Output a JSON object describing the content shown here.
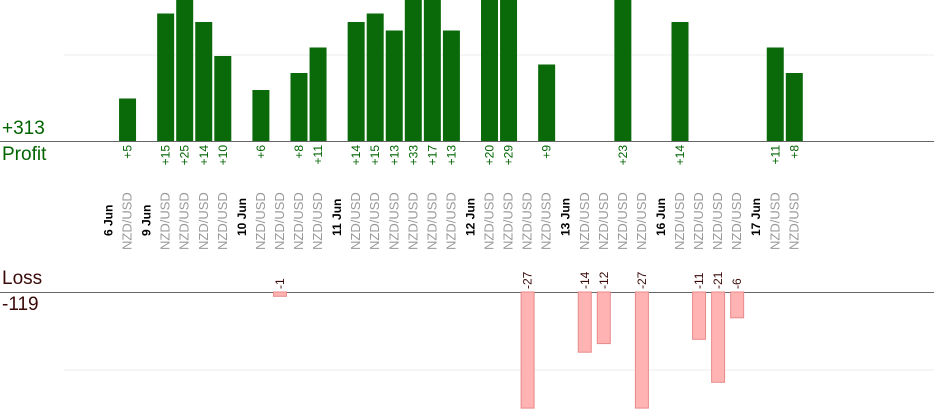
{
  "summary": {
    "profit_total": "+313",
    "profit_label": "Profit",
    "loss_label": "Loss",
    "loss_total": "-119"
  },
  "colors": {
    "profit_bar": "#0a6a0a",
    "loss_bar": "#ffb3b3",
    "profit_text": "#006400",
    "loss_text": "#3a0a0a",
    "pair_text": "#999999",
    "date_text": "#000000"
  },
  "chart_data": {
    "type": "bar",
    "grid": true,
    "columns": [
      {
        "label": "6 Jun",
        "kind": "date"
      },
      {
        "label": "NZD/USD",
        "kind": "pair",
        "profit": 5
      },
      {
        "label": "9 Jun",
        "kind": "date"
      },
      {
        "label": "NZD/USD",
        "kind": "pair",
        "profit": 15
      },
      {
        "label": "NZD/USD",
        "kind": "pair",
        "profit": 25
      },
      {
        "label": "NZD/USD",
        "kind": "pair",
        "profit": 14
      },
      {
        "label": "NZD/USD",
        "kind": "pair",
        "profit": 10
      },
      {
        "label": "10 Jun",
        "kind": "date"
      },
      {
        "label": "NZD/USD",
        "kind": "pair",
        "profit": 6
      },
      {
        "label": "NZD/USD",
        "kind": "pair",
        "loss": -1
      },
      {
        "label": "NZD/USD",
        "kind": "pair",
        "profit": 8
      },
      {
        "label": "NZD/USD",
        "kind": "pair",
        "profit": 11
      },
      {
        "label": "11 Jun",
        "kind": "date"
      },
      {
        "label": "NZD/USD",
        "kind": "pair",
        "profit": 14
      },
      {
        "label": "NZD/USD",
        "kind": "pair",
        "profit": 15
      },
      {
        "label": "NZD/USD",
        "kind": "pair",
        "profit": 13
      },
      {
        "label": "NZD/USD",
        "kind": "pair",
        "profit": 33
      },
      {
        "label": "NZD/USD",
        "kind": "pair",
        "profit": 17
      },
      {
        "label": "NZD/USD",
        "kind": "pair",
        "profit": 13
      },
      {
        "label": "12 Jun",
        "kind": "date"
      },
      {
        "label": "NZD/USD",
        "kind": "pair",
        "profit": 20
      },
      {
        "label": "NZD/USD",
        "kind": "pair",
        "profit": 29
      },
      {
        "label": "NZD/USD",
        "kind": "pair",
        "loss": -27
      },
      {
        "label": "NZD/USD",
        "kind": "pair",
        "profit": 9
      },
      {
        "label": "13 Jun",
        "kind": "date"
      },
      {
        "label": "NZD/USD",
        "kind": "pair",
        "loss": -14
      },
      {
        "label": "NZD/USD",
        "kind": "pair",
        "loss": -12
      },
      {
        "label": "NZD/USD",
        "kind": "pair",
        "profit": 23
      },
      {
        "label": "NZD/USD",
        "kind": "pair",
        "loss": -27
      },
      {
        "label": "16 Jun",
        "kind": "date"
      },
      {
        "label": "NZD/USD",
        "kind": "pair",
        "profit": 14
      },
      {
        "label": "NZD/USD",
        "kind": "pair",
        "loss": -11
      },
      {
        "label": "NZD/USD",
        "kind": "pair",
        "loss": -21
      },
      {
        "label": "NZD/USD",
        "kind": "pair",
        "loss": -6
      },
      {
        "label": "17 Jun",
        "kind": "date"
      },
      {
        "label": "NZD/USD",
        "kind": "pair",
        "profit": 11
      },
      {
        "label": "NZD/USD",
        "kind": "pair",
        "profit": 8
      }
    ]
  }
}
